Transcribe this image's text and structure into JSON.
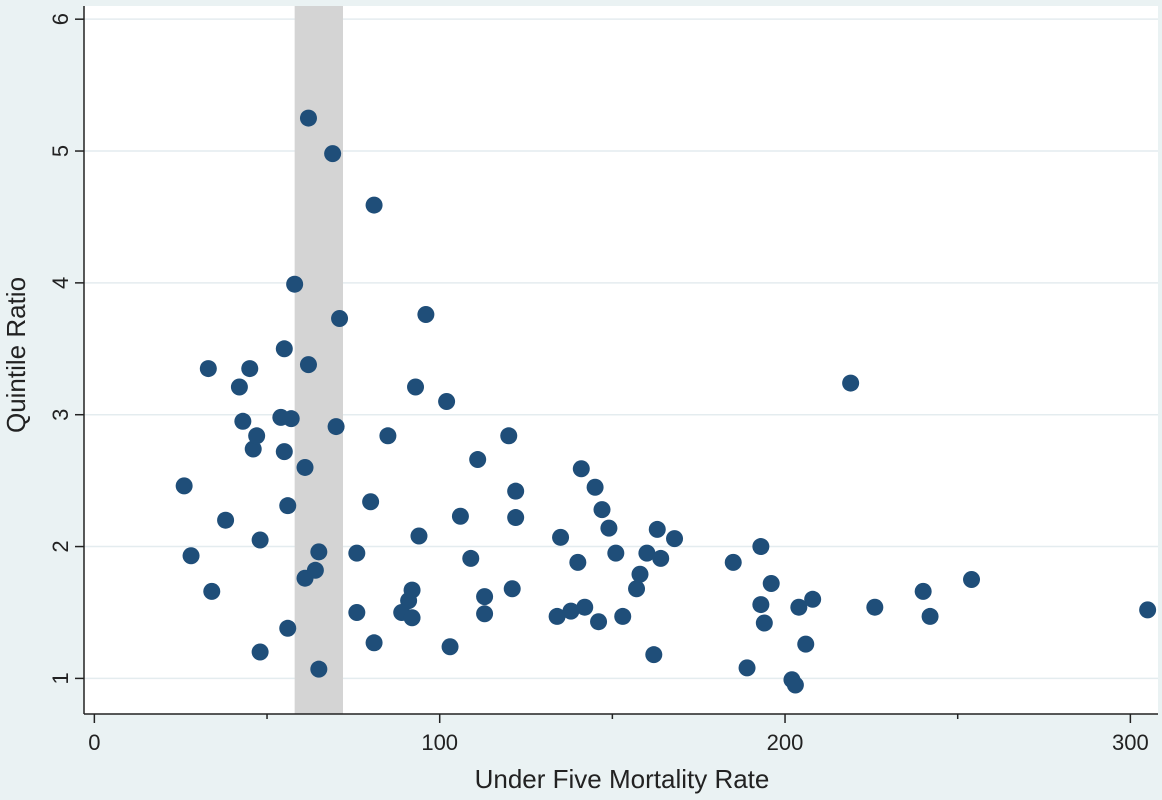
{
  "chart_data": {
    "type": "scatter",
    "title": "",
    "xlabel": "Under Five Mortality Rate",
    "ylabel": "Quintile Ratio",
    "xlim": [
      -3,
      308
    ],
    "ylim": [
      0.73,
      6.1
    ],
    "x_ticks": [
      0,
      100,
      200,
      300
    ],
    "x_minor_ticks": [
      50,
      150,
      250
    ],
    "y_ticks": [
      1,
      2,
      3,
      4,
      5,
      6
    ],
    "grid": "horizontal",
    "legend": "none",
    "shaded_band": {
      "x_from": 58,
      "x_to": 72
    },
    "colors": {
      "marker": "#1f4e79",
      "band": "#d4d4d4",
      "outer_background": "#eaf2f3",
      "plot_background": "#ffffff",
      "grid": "#e4ecef"
    },
    "points": [
      {
        "x": 26,
        "y": 2.46
      },
      {
        "x": 28,
        "y": 1.93
      },
      {
        "x": 33,
        "y": 3.35
      },
      {
        "x": 34,
        "y": 1.66
      },
      {
        "x": 38,
        "y": 2.2
      },
      {
        "x": 42,
        "y": 3.21
      },
      {
        "x": 43,
        "y": 2.95
      },
      {
        "x": 45,
        "y": 3.35
      },
      {
        "x": 46,
        "y": 2.74
      },
      {
        "x": 47,
        "y": 2.84
      },
      {
        "x": 48,
        "y": 2.05
      },
      {
        "x": 48,
        "y": 1.2
      },
      {
        "x": 54,
        "y": 2.98
      },
      {
        "x": 55,
        "y": 3.5
      },
      {
        "x": 55,
        "y": 2.72
      },
      {
        "x": 56,
        "y": 1.38
      },
      {
        "x": 56,
        "y": 2.31
      },
      {
        "x": 57,
        "y": 2.97
      },
      {
        "x": 58,
        "y": 3.99
      },
      {
        "x": 61,
        "y": 2.6
      },
      {
        "x": 61,
        "y": 1.76
      },
      {
        "x": 62,
        "y": 5.25
      },
      {
        "x": 62,
        "y": 3.38
      },
      {
        "x": 64,
        "y": 1.82
      },
      {
        "x": 65,
        "y": 1.96
      },
      {
        "x": 65,
        "y": 1.07
      },
      {
        "x": 69,
        "y": 4.98
      },
      {
        "x": 70,
        "y": 2.91
      },
      {
        "x": 71,
        "y": 3.73
      },
      {
        "x": 76,
        "y": 1.95
      },
      {
        "x": 76,
        "y": 1.5
      },
      {
        "x": 80,
        "y": 2.34
      },
      {
        "x": 81,
        "y": 4.59
      },
      {
        "x": 81,
        "y": 1.27
      },
      {
        "x": 85,
        "y": 2.84
      },
      {
        "x": 89,
        "y": 1.5
      },
      {
        "x": 91,
        "y": 1.59
      },
      {
        "x": 92,
        "y": 1.67
      },
      {
        "x": 92,
        "y": 1.46
      },
      {
        "x": 93,
        "y": 3.21
      },
      {
        "x": 94,
        "y": 2.08
      },
      {
        "x": 96,
        "y": 3.76
      },
      {
        "x": 102,
        "y": 3.1
      },
      {
        "x": 103,
        "y": 1.24
      },
      {
        "x": 106,
        "y": 2.23
      },
      {
        "x": 109,
        "y": 1.91
      },
      {
        "x": 111,
        "y": 2.66
      },
      {
        "x": 113,
        "y": 1.62
      },
      {
        "x": 113,
        "y": 1.49
      },
      {
        "x": 120,
        "y": 2.84
      },
      {
        "x": 121,
        "y": 1.68
      },
      {
        "x": 122,
        "y": 2.42
      },
      {
        "x": 122,
        "y": 2.22
      },
      {
        "x": 134,
        "y": 1.47
      },
      {
        "x": 135,
        "y": 2.07
      },
      {
        "x": 138,
        "y": 1.51
      },
      {
        "x": 140,
        "y": 1.88
      },
      {
        "x": 141,
        "y": 2.59
      },
      {
        "x": 142,
        "y": 1.54
      },
      {
        "x": 145,
        "y": 2.45
      },
      {
        "x": 146,
        "y": 1.43
      },
      {
        "x": 147,
        "y": 2.28
      },
      {
        "x": 149,
        "y": 2.14
      },
      {
        "x": 151,
        "y": 1.95
      },
      {
        "x": 153,
        "y": 1.47
      },
      {
        "x": 157,
        "y": 1.68
      },
      {
        "x": 158,
        "y": 1.79
      },
      {
        "x": 160,
        "y": 1.95
      },
      {
        "x": 162,
        "y": 1.18
      },
      {
        "x": 163,
        "y": 2.13
      },
      {
        "x": 164,
        "y": 1.91
      },
      {
        "x": 168,
        "y": 2.06
      },
      {
        "x": 185,
        "y": 1.88
      },
      {
        "x": 189,
        "y": 1.08
      },
      {
        "x": 193,
        "y": 2.0
      },
      {
        "x": 193,
        "y": 1.56
      },
      {
        "x": 194,
        "y": 1.42
      },
      {
        "x": 196,
        "y": 1.72
      },
      {
        "x": 202,
        "y": 0.99
      },
      {
        "x": 203,
        "y": 0.95
      },
      {
        "x": 204,
        "y": 1.54
      },
      {
        "x": 206,
        "y": 1.26
      },
      {
        "x": 208,
        "y": 1.6
      },
      {
        "x": 219,
        "y": 3.24
      },
      {
        "x": 226,
        "y": 1.54
      },
      {
        "x": 240,
        "y": 1.66
      },
      {
        "x": 242,
        "y": 1.47
      },
      {
        "x": 254,
        "y": 1.75
      },
      {
        "x": 305,
        "y": 1.52
      }
    ]
  }
}
